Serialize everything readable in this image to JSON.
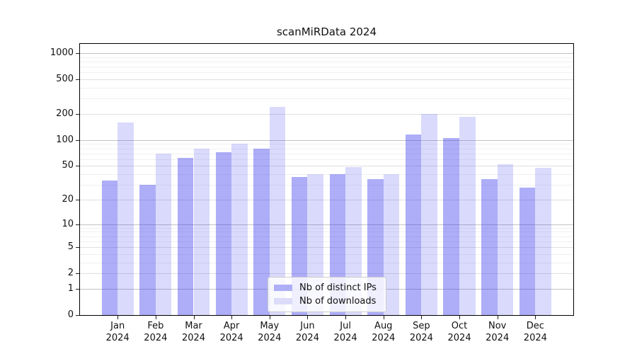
{
  "page": {
    "background": "#ffffff"
  },
  "chart_data": {
    "type": "bar",
    "title": "scanMiRData 2024",
    "categories": [
      "Jan 2024",
      "Feb 2024",
      "Mar 2024",
      "Apr 2024",
      "May 2024",
      "Jun 2024",
      "Jul 2024",
      "Aug 2024",
      "Sep 2024",
      "Oct 2024",
      "Nov 2024",
      "Dec 2024"
    ],
    "series": [
      {
        "name": "Nb of distinct IPs",
        "color": "rgba(59,59,238,0.42)",
        "legend_color": "#aeaef6",
        "values": [
          34,
          30,
          62,
          73,
          79,
          37,
          40,
          35,
          115,
          105,
          35,
          28
        ]
      },
      {
        "name": "Nb of downloads",
        "color": "rgba(59,59,238,0.19)",
        "legend_color": "#dcdcfa",
        "values": [
          160,
          70,
          80,
          90,
          240,
          40,
          49,
          40,
          200,
          185,
          52,
          48
        ]
      }
    ],
    "xlabel": "",
    "ylabel": "",
    "yscale": "log1p",
    "y_ticks": [
      0,
      1,
      2,
      5,
      10,
      20,
      50,
      100,
      200,
      500,
      1000
    ],
    "ylim": [
      0,
      1000
    ],
    "grid": "on",
    "legend_position": "lower center",
    "grid_major_color": "#c3c3c3",
    "grid_mid_color": "#dfdfdf",
    "grid_minor_color": "#f0f0f0"
  }
}
